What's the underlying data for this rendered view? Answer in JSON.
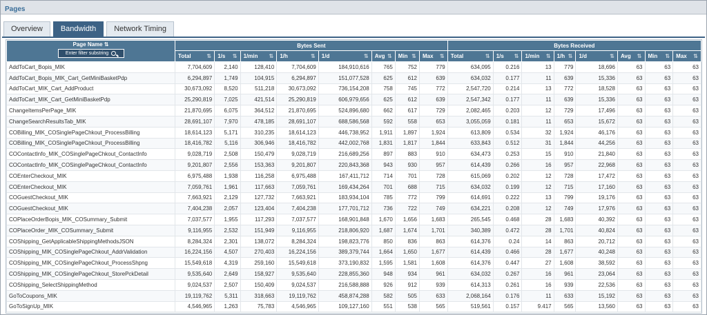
{
  "window": {
    "title": "Pages"
  },
  "tabs": [
    {
      "label": "Overview",
      "active": false
    },
    {
      "label": "Bandwidth",
      "active": true
    },
    {
      "label": "Network Timing",
      "active": false
    }
  ],
  "table": {
    "page_name_header": "Page Name",
    "filter_placeholder": "Enter filter substring",
    "groups": [
      "Bytes Sent",
      "Bytes Received"
    ],
    "sub_headers": [
      "Total",
      "1/s",
      "1/min",
      "1/h",
      "1/d",
      "Avg",
      "Min",
      "Max",
      "Total",
      "1/s",
      "1/min",
      "1/h",
      "1/d",
      "Avg",
      "Min",
      "Max"
    ],
    "rows": [
      [
        "AddToCart_Bopis_MIK",
        "7,704,609",
        "2,140",
        "128,410",
        "7,704,609",
        "184,910,616",
        "765",
        "752",
        "779",
        "634,095",
        "0.216",
        "13",
        "779",
        "18,696",
        "63",
        "63",
        "63"
      ],
      [
        "AddToCart_Bopis_MIK_Cart_GetMiniBasketPdp",
        "6,294,897",
        "1,749",
        "104,915",
        "6,294,897",
        "151,077,528",
        "625",
        "612",
        "639",
        "634,032",
        "0.177",
        "11",
        "639",
        "15,336",
        "63",
        "63",
        "63"
      ],
      [
        "AddToCart_MIK_Cart_AddProduct",
        "30,673,092",
        "8,520",
        "511,218",
        "30,673,092",
        "736,154,208",
        "758",
        "745",
        "772",
        "2,547,720",
        "0.214",
        "13",
        "772",
        "18,528",
        "63",
        "63",
        "63"
      ],
      [
        "AddToCart_MIK_Cart_GetMiniBasketPdp",
        "25,290,819",
        "7,025",
        "421,514",
        "25,290,819",
        "606,979,656",
        "625",
        "612",
        "639",
        "2,547,342",
        "0.177",
        "11",
        "639",
        "15,336",
        "63",
        "63",
        "63"
      ],
      [
        "ChangeItemsPerPage_MIK",
        "21,870,695",
        "6,075",
        "364,512",
        "21,870,695",
        "524,896,680",
        "662",
        "617",
        "729",
        "2,082,465",
        "0.203",
        "12",
        "729",
        "17,496",
        "63",
        "63",
        "63"
      ],
      [
        "ChangeSearchResultsTab_MIK",
        "28,691,107",
        "7,970",
        "478,185",
        "28,691,107",
        "688,586,568",
        "592",
        "558",
        "653",
        "3,055,059",
        "0.181",
        "11",
        "653",
        "15,672",
        "63",
        "63",
        "63"
      ],
      [
        "COBilling_MIK_COSinglePageChkout_ProcessBilling",
        "18,614,123",
        "5,171",
        "310,235",
        "18,614,123",
        "446,738,952",
        "1,911",
        "1,897",
        "1,924",
        "613,809",
        "0.534",
        "32",
        "1,924",
        "46,176",
        "63",
        "63",
        "63"
      ],
      [
        "COBilling_MIK_COSinglePageChkout_ProcessBilling",
        "18,416,782",
        "5,116",
        "306,946",
        "18,416,782",
        "442,002,768",
        "1,831",
        "1,817",
        "1,844",
        "633,843",
        "0.512",
        "31",
        "1,844",
        "44,256",
        "63",
        "63",
        "63"
      ],
      [
        "COContactInfo_MIK_COSinglePageChkout_ContactInfo",
        "9,028,719",
        "2,508",
        "150,479",
        "9,028,719",
        "216,689,256",
        "897",
        "883",
        "910",
        "634,473",
        "0.253",
        "15",
        "910",
        "21,840",
        "63",
        "63",
        "63"
      ],
      [
        "COContactInfo_MIK_COSinglePageChkout_ContactInfo",
        "9,201,807",
        "2,556",
        "153,363",
        "9,201,807",
        "220,843,368",
        "943",
        "930",
        "957",
        "614,439",
        "0.266",
        "16",
        "957",
        "22,968",
        "63",
        "63",
        "63"
      ],
      [
        "COEnterCheckout_MIK",
        "6,975,488",
        "1,938",
        "116,258",
        "6,975,488",
        "167,411,712",
        "714",
        "701",
        "728",
        "615,069",
        "0.202",
        "12",
        "728",
        "17,472",
        "63",
        "63",
        "63"
      ],
      [
        "COEnterCheckout_MIK",
        "7,059,761",
        "1,961",
        "117,663",
        "7,059,761",
        "169,434,264",
        "701",
        "688",
        "715",
        "634,032",
        "0.199",
        "12",
        "715",
        "17,160",
        "63",
        "63",
        "63"
      ],
      [
        "COGuestCheckout_MIK",
        "7,663,921",
        "2,129",
        "127,732",
        "7,663,921",
        "183,934,104",
        "785",
        "772",
        "799",
        "614,691",
        "0.222",
        "13",
        "799",
        "19,176",
        "63",
        "63",
        "63"
      ],
      [
        "COGuestCheckout_MIK",
        "7,404,238",
        "2,057",
        "123,404",
        "7,404,238",
        "177,701,712",
        "736",
        "722",
        "749",
        "634,221",
        "0.208",
        "12",
        "749",
        "17,976",
        "63",
        "63",
        "63"
      ],
      [
        "COPlaceOrderBopis_MIK_COSummary_Submit",
        "7,037,577",
        "1,955",
        "117,293",
        "7,037,577",
        "168,901,848",
        "1,670",
        "1,656",
        "1,683",
        "265,545",
        "0.468",
        "28",
        "1,683",
        "40,392",
        "63",
        "63",
        "63"
      ],
      [
        "COPlaceOrder_MIK_COSummary_Submit",
        "9,116,955",
        "2,532",
        "151,949",
        "9,116,955",
        "218,806,920",
        "1,687",
        "1,674",
        "1,701",
        "340,389",
        "0.472",
        "28",
        "1,701",
        "40,824",
        "63",
        "63",
        "63"
      ],
      [
        "COShipping_GetApplicableShippingMethodsJSON",
        "8,284,324",
        "2,301",
        "138,072",
        "8,284,324",
        "198,823,776",
        "850",
        "836",
        "863",
        "614,376",
        "0.24",
        "14",
        "863",
        "20,712",
        "63",
        "63",
        "63"
      ],
      [
        "COShipping_MIK_COSinglePageChkout_AddrValidation",
        "16,224,156",
        "4,507",
        "270,403",
        "16,224,156",
        "389,379,744",
        "1,664",
        "1,650",
        "1,677",
        "614,439",
        "0.466",
        "28",
        "1,677",
        "40,248",
        "63",
        "63",
        "63"
      ],
      [
        "COShipping_MIK_COSinglePageChkout_ProcessShpng",
        "15,549,618",
        "4,319",
        "259,160",
        "15,549,618",
        "373,190,832",
        "1,595",
        "1,581",
        "1,608",
        "614,376",
        "0.447",
        "27",
        "1,608",
        "38,592",
        "63",
        "63",
        "63"
      ],
      [
        "COShipping_MIK_COSinglePageChkout_StorePckDetail",
        "9,535,640",
        "2,649",
        "158,927",
        "9,535,640",
        "228,855,360",
        "948",
        "934",
        "961",
        "634,032",
        "0.267",
        "16",
        "961",
        "23,064",
        "63",
        "63",
        "63"
      ],
      [
        "COShipping_SelectShippingMethod",
        "9,024,537",
        "2,507",
        "150,409",
        "9,024,537",
        "216,588,888",
        "926",
        "912",
        "939",
        "614,313",
        "0.261",
        "16",
        "939",
        "22,536",
        "63",
        "63",
        "63"
      ],
      [
        "GoToCoupons_MIK",
        "19,119,762",
        "5,311",
        "318,663",
        "19,119,762",
        "458,874,288",
        "582",
        "505",
        "633",
        "2,068,164",
        "0.176",
        "11",
        "633",
        "15,192",
        "63",
        "63",
        "63"
      ],
      [
        "GoToSignUp_MIK",
        "4,546,965",
        "1,263",
        "75,783",
        "4,546,965",
        "109,127,160",
        "551",
        "538",
        "565",
        "519,561",
        "0.157",
        "9.417",
        "565",
        "13,560",
        "63",
        "63",
        "63"
      ]
    ]
  }
}
